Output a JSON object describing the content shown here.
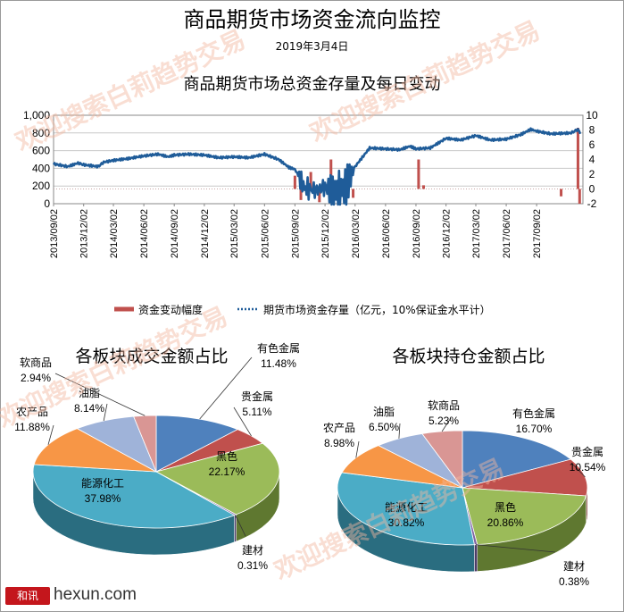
{
  "title": "商品期货市场资金流向监控",
  "date": "2019年3月4日",
  "subtitle": "商品期货市场总资金存量及每日变动",
  "watermark": "欢迎搜索白莉趋势交易",
  "footer": {
    "logo_text": "和讯",
    "site": "hexun.com"
  },
  "colors": {
    "line": "#1f5c99",
    "bars": "#c0504d",
    "grid": "#c8c8c8"
  },
  "chart_data": [
    {
      "type": "line",
      "title": "商品期货市场总资金存量及每日变动",
      "y_left": {
        "ticks": [
          "0",
          "200",
          "400",
          "600",
          "800",
          "1,000"
        ],
        "range": [
          0,
          1000
        ]
      },
      "y_right": {
        "ticks": [
          "-2",
          "0",
          "2",
          "4",
          "6",
          "8",
          "10"
        ],
        "range": [
          -2,
          10
        ]
      },
      "x_ticks": [
        "2013/09/02",
        "2013/12/02",
        "2014/03/02",
        "2014/06/02",
        "2014/09/02",
        "2014/12/02",
        "2015/03/02",
        "2015/06/02",
        "2015/09/02",
        "2015/12/02",
        "2016/03/02",
        "2016/06/02",
        "2016/09/02",
        "2016/12/02",
        "2017/03/02",
        "2017/06/02",
        "2017/09/02"
      ],
      "series": [
        {
          "name": "资金变动幅度",
          "kind": "bar",
          "axis": "right",
          "points": [
            [
              "2015/09/02",
              1.8
            ],
            [
              "2015/09/20",
              -1.5
            ],
            [
              "2015/10/20",
              2.3
            ],
            [
              "2015/11/15",
              -1.8
            ],
            [
              "2015/12/20",
              4.0
            ],
            [
              "2016/01/15",
              -1.6
            ],
            [
              "2016/02/05",
              1.7
            ],
            [
              "2016/02/25",
              -1.2
            ],
            [
              "2016/09/10",
              4.0
            ],
            [
              "2016/09/25",
              0.5
            ],
            [
              "2017/11/15",
              -1.0
            ],
            [
              "2018/01/05",
              8.3
            ],
            [
              "2018/01/10",
              -2.0
            ]
          ]
        },
        {
          "name": "期货市场资金存量（亿元，10%保证金水平计）",
          "kind": "line",
          "axis": "left",
          "points": [
            [
              "2013/09/02",
              450
            ],
            [
              "2013/10/15",
              420
            ],
            [
              "2013/11/15",
              460
            ],
            [
              "2013/12/02",
              440
            ],
            [
              "2014/01/15",
              420
            ],
            [
              "2014/02/01",
              470
            ],
            [
              "2014/03/02",
              490
            ],
            [
              "2014/04/15",
              510
            ],
            [
              "2014/06/02",
              540
            ],
            [
              "2014/07/15",
              560
            ],
            [
              "2014/08/15",
              530
            ],
            [
              "2014/09/02",
              550
            ],
            [
              "2014/10/15",
              560
            ],
            [
              "2014/12/02",
              550
            ],
            [
              "2015/01/15",
              520
            ],
            [
              "2015/03/02",
              530
            ],
            [
              "2015/04/15",
              520
            ],
            [
              "2015/06/02",
              560
            ],
            [
              "2015/07/15",
              500
            ],
            [
              "2015/08/15",
              410
            ],
            [
              "2015/09/02",
              390
            ],
            [
              "2015/10/01",
              180
            ],
            [
              "2015/11/01",
              150
            ],
            [
              "2015/12/02",
              190
            ],
            [
              "2016/01/01",
              130
            ],
            [
              "2016/02/01",
              180
            ],
            [
              "2016/03/02",
              420
            ],
            [
              "2016/04/15",
              630
            ],
            [
              "2016/06/02",
              620
            ],
            [
              "2016/07/15",
              610
            ],
            [
              "2016/08/15",
              650
            ],
            [
              "2016/09/02",
              620
            ],
            [
              "2016/10/15",
              630
            ],
            [
              "2016/11/15",
              700
            ],
            [
              "2016/12/02",
              740
            ],
            [
              "2017/01/15",
              720
            ],
            [
              "2017/03/02",
              770
            ],
            [
              "2017/04/15",
              720
            ],
            [
              "2017/06/02",
              730
            ],
            [
              "2017/07/15",
              780
            ],
            [
              "2017/08/15",
              840
            ],
            [
              "2017/09/02",
              820
            ],
            [
              "2017/10/15",
              790
            ],
            [
              "2017/12/15",
              800
            ],
            [
              "2018/01/05",
              840
            ],
            [
              "2018/01/15",
              780
            ]
          ]
        }
      ]
    },
    {
      "type": "pie",
      "title": "各板块成交金额占比",
      "series": [
        {
          "values": [
            11.48,
            5.11,
            22.17,
            0.31,
            37.98,
            11.88,
            8.14,
            2.94
          ],
          "labels": [
            "有色金属",
            "贵金属",
            "黑色",
            "建材",
            "能源化工",
            "农产品",
            "油脂",
            "软商品"
          ],
          "value_labels": [
            "11.48%",
            "5.11%",
            "22.17%",
            "0.31%",
            "37.98%",
            "11.88%",
            "8.14%",
            "2.94%"
          ]
        }
      ]
    },
    {
      "type": "pie",
      "title": "各板块持仓金额占比",
      "series": [
        {
          "values": [
            16.7,
            10.54,
            20.86,
            0.38,
            30.82,
            8.98,
            6.5,
            5.23
          ],
          "labels": [
            "有色金属",
            "贵金属",
            "黑色",
            "建材",
            "能源化工",
            "农产品",
            "油脂",
            "软商品"
          ],
          "value_labels": [
            "16.70%",
            "10.54%",
            "20.86%",
            "0.38%",
            "30.82%",
            "8.98%",
            "6.50%",
            "5.23%"
          ]
        }
      ]
    }
  ],
  "pie_colors": [
    "#4f81bd",
    "#c0504d",
    "#9bbb59",
    "#8064a2",
    "#4bacc6",
    "#f79646",
    "#9fb3d9",
    "#d99694"
  ],
  "pie_side_colors": [
    "#2c4d75",
    "#7a2f2d",
    "#5f7830",
    "#4e3c66",
    "#2a6d80",
    "#a65d1f",
    "#6a7fa6",
    "#a06462"
  ]
}
